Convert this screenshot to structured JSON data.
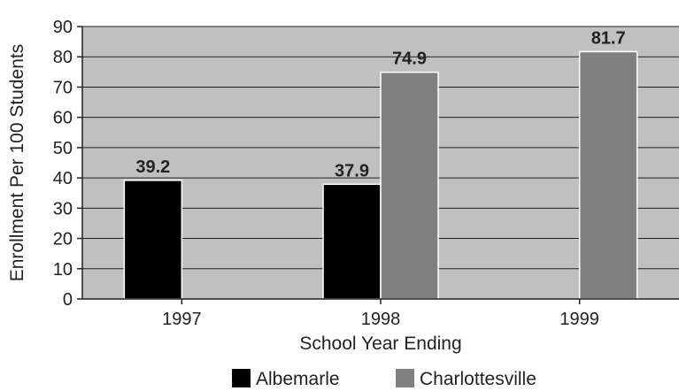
{
  "chart_data": {
    "type": "bar",
    "xlabel": "School Year Ending",
    "ylabel": "Enrollment Per 100 Students",
    "ylim": [
      0,
      90
    ],
    "yticks": [
      0,
      10,
      20,
      30,
      40,
      50,
      60,
      70,
      80,
      90
    ],
    "categories": [
      "1997",
      "1998",
      "1999"
    ],
    "series": [
      {
        "name": "Albemarle",
        "color": "#000000",
        "values": [
          39.2,
          37.9,
          null
        ],
        "labels": [
          "39.2",
          "37.9",
          ""
        ]
      },
      {
        "name": "Charlottesville",
        "color": "#808080",
        "values": [
          null,
          74.9,
          81.7
        ],
        "labels": [
          "",
          "74.9",
          "81.7"
        ]
      }
    ],
    "grid": true,
    "plot_background": "#c0c0c0",
    "legend_position": "bottom"
  }
}
